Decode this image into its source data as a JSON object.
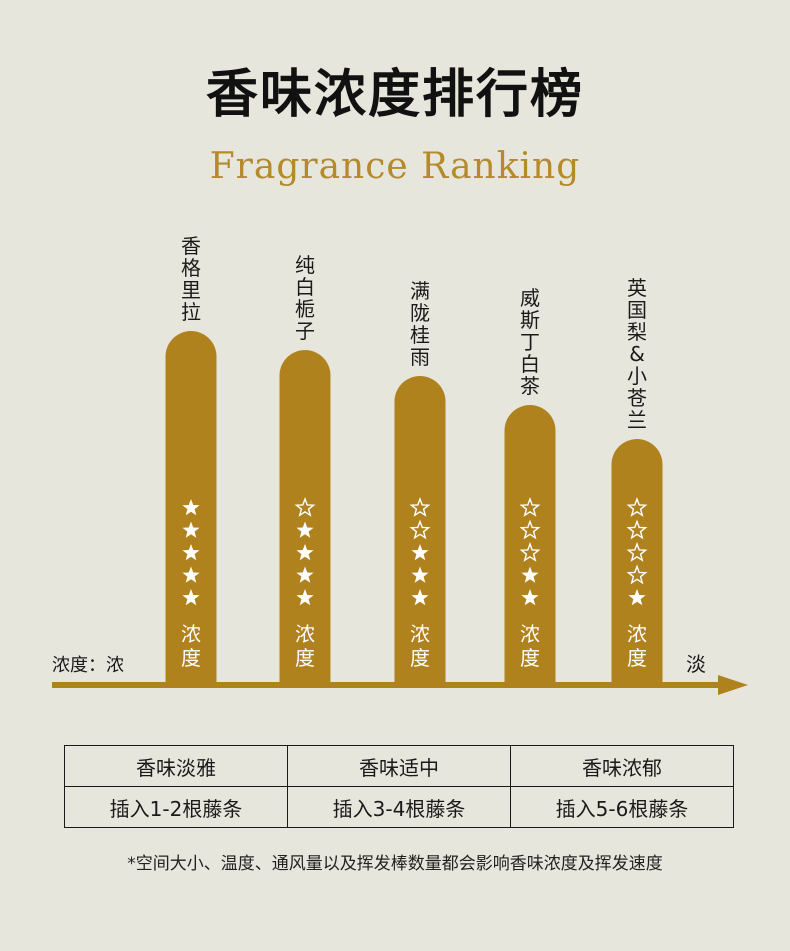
{
  "title": "香味浓度排行榜",
  "subtitle": "Fragrance Ranking",
  "axis": {
    "start_label": "浓度：浓",
    "end_label": "淡"
  },
  "colors": {
    "bar": "#b0821e",
    "axis": "#b0821e",
    "star": "#ffffff",
    "text": "#1a1a1a"
  },
  "chart_data": {
    "type": "bar",
    "title": "香味浓度排行榜",
    "subtitle": "Fragrance Ranking",
    "categories": [
      "香格里拉",
      "纯白栀子",
      "满陇桂雨",
      "威斯丁白茶",
      "英国梨&小苍兰"
    ],
    "values": [
      5,
      4,
      3,
      2,
      1
    ],
    "max": 5,
    "bar_label": "浓度",
    "grid": false,
    "legend": "none"
  },
  "table": {
    "headers": [
      "香味淡雅",
      "香味适中",
      "香味浓郁"
    ],
    "rows": [
      [
        "插入1-2根藤条",
        "插入3-4根藤条",
        "插入5-6根藤条"
      ]
    ]
  },
  "note": "*空间大小、温度、通风量以及挥发棒数量都会影响香味浓度及挥发速度"
}
